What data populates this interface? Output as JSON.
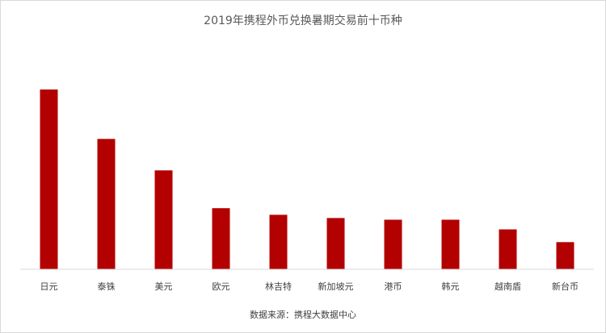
{
  "chart_data": {
    "type": "bar",
    "title": "2019年携程外币兑换暑期交易前十币种",
    "categories": [
      "日元",
      "泰铢",
      "美元",
      "欧元",
      "林吉特",
      "新加坡元",
      "港币",
      "韩元",
      "越南盾",
      "新台币"
    ],
    "values": [
      100,
      72.5,
      55,
      34,
      30.3,
      28.5,
      27.6,
      27.6,
      22.2,
      15.1
    ],
    "ylim": [
      0,
      100
    ],
    "grid": false,
    "legend": "none",
    "bar_color": "#B30000",
    "source": "数据来源：携程大数据中心"
  }
}
